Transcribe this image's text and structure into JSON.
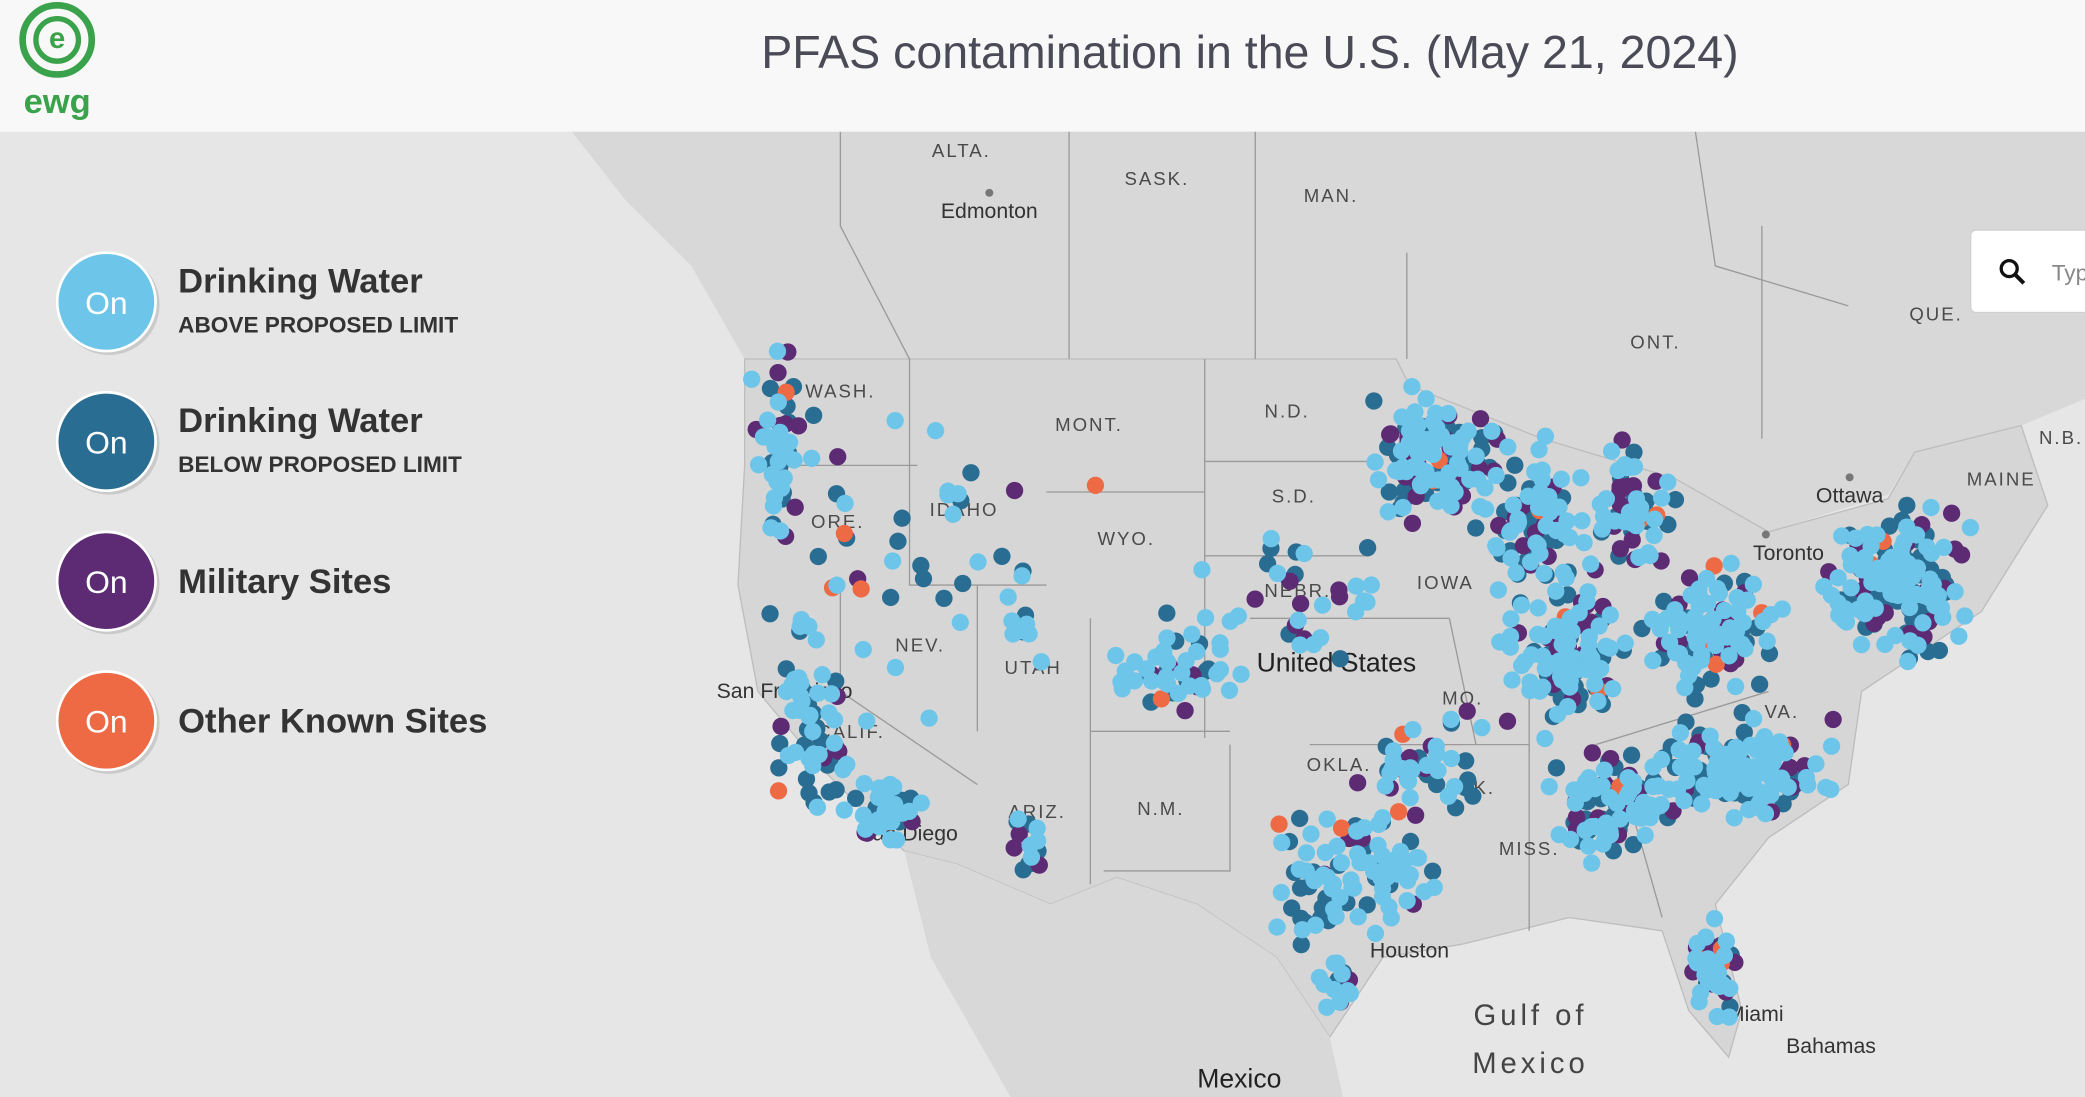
{
  "header": {
    "logo_text": "ewg",
    "title": "PFAS contamination in the U.S. (May 21, 2024)"
  },
  "legend": [
    {
      "toggle": "On",
      "label": "Drinking Water",
      "sublabel": "ABOVE PROPOSED LIMIT",
      "color": "#6dc6ea"
    },
    {
      "toggle": "On",
      "label": "Drinking Water",
      "sublabel": "BELOW PROPOSED LIMIT",
      "color": "#2a6d92"
    },
    {
      "toggle": "On",
      "label": "Military Sites",
      "color": "#5d2a74"
    },
    {
      "toggle": "On",
      "label": "Other Known Sites",
      "color": "#ee6a45"
    }
  ],
  "search": {
    "placeholder": "Type a location"
  },
  "map_labels": [
    "ALTA.",
    "SASK.",
    "MAN.",
    "Edmonton",
    "ONT.",
    "QUE.",
    "Ottawa",
    "Toronto",
    "N.B.",
    "MAINE",
    "WASH.",
    "MONT.",
    "N.D.",
    "ORE.",
    "IDAHO",
    "S.D.",
    "WYO.",
    "NEBR.",
    "IOWA",
    "NEV.",
    "UTAH",
    "United States",
    "San Francisco",
    "CALIF.",
    "MO.",
    "ARK.",
    "ARIZ.",
    "N.M.",
    "OKLA.",
    "MISS.",
    "VA.",
    "San Diego",
    "Houston",
    "Gulf of",
    "Mexico",
    "Mexico",
    "Bahamas",
    "Miami"
  ]
}
